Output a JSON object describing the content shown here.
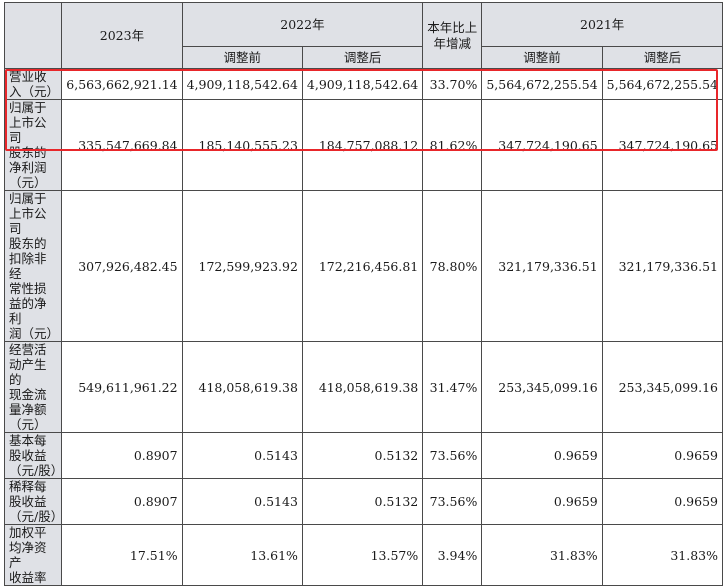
{
  "header": {
    "y2023": "2023年",
    "y2022": "2022年",
    "change_line1": "本年比上",
    "change_line2": "年增减",
    "y2021": "2021年",
    "before_adj": "调整前",
    "after_adj": "调整后"
  },
  "rows": [
    {
      "label": [
        "营业收入（元）"
      ],
      "values": [
        "6,563,662,921.14",
        "4,909,118,542.64",
        "4,909,118,542.64",
        "33.70%",
        "5,564,672,255.54",
        "5,564,672,255.54"
      ]
    },
    {
      "label": [
        "归属于上市公司",
        "股东的净利润",
        "（元）"
      ],
      "values": [
        "335,547,669.84",
        "185,140,555.23",
        "184,757,088.12",
        "81.62%",
        "347,724,190.65",
        "347,724,190.65"
      ]
    },
    {
      "label": [
        "归属于上市公司",
        "股东的扣除非经",
        "常性损益的净利",
        "润（元）"
      ],
      "values": [
        "307,926,482.45",
        "172,599,923.92",
        "172,216,456.81",
        "78.80%",
        "321,179,336.51",
        "321,179,336.51"
      ]
    },
    {
      "label": [
        "经营活动产生的",
        "现金流量净额",
        "（元）"
      ],
      "values": [
        "549,611,961.22",
        "418,058,619.38",
        "418,058,619.38",
        "31.47%",
        "253,345,099.16",
        "253,345,099.16"
      ]
    },
    {
      "label": [
        "基本每股收益",
        "（元/股）"
      ],
      "values": [
        "0.8907",
        "0.5143",
        "0.5132",
        "73.56%",
        "0.9659",
        "0.9659"
      ]
    },
    {
      "label": [
        "稀释每股收益",
        "（元/股）"
      ],
      "values": [
        "0.8907",
        "0.5143",
        "0.5132",
        "73.56%",
        "0.9659",
        "0.9659"
      ]
    },
    {
      "label": [
        "加权平均净资产",
        "收益率"
      ],
      "values": [
        "17.51%",
        "13.61%",
        "13.57%",
        "3.94%",
        "31.83%",
        "31.83%"
      ]
    }
  ],
  "highlight_color": "#e8262a"
}
